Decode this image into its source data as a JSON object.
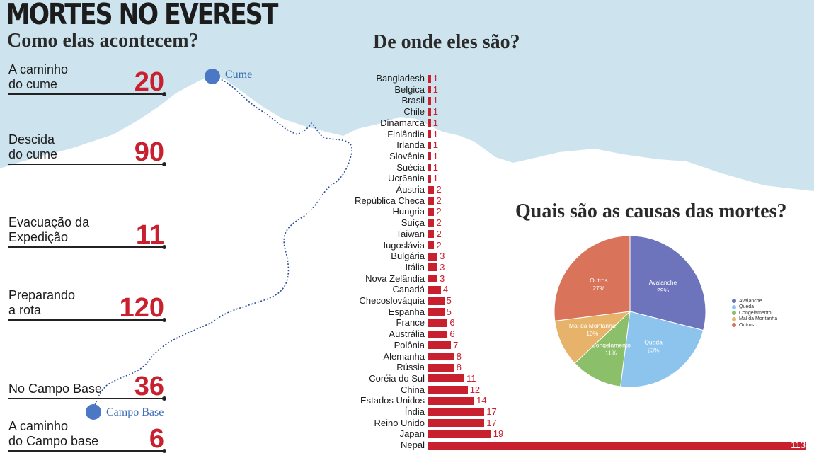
{
  "title": "MORTES NO EVEREST",
  "section_causes": "Como elas acontecem?",
  "section_countries": "De onde eles são?",
  "section_pie": "Quais são as causas das mortes?",
  "map": {
    "summit_label": "Cume",
    "basecamp_label": "Campo Base"
  },
  "causes": [
    {
      "label_line1": "A caminho",
      "label_line2": "do cume",
      "value": "20"
    },
    {
      "label_line1": "Descida",
      "label_line2": "do cume",
      "value": "90"
    },
    {
      "label_line1": "Evacuação da",
      "label_line2": "Expedição",
      "value": "11"
    },
    {
      "label_line1": "Preparando",
      "label_line2": "a rota",
      "value": "120"
    },
    {
      "label_line1": "",
      "label_line2": "No Campo Base",
      "value": "36"
    },
    {
      "label_line1": "A caminho",
      "label_line2": "do Campo base",
      "value": "6"
    }
  ],
  "colors": {
    "sky": "#cde4ee",
    "bar": "#c8202f",
    "route": "#2b4f9a",
    "marker": "#4a78c4",
    "accent_red": "#c8202f"
  },
  "chart_data": [
    {
      "type": "bar",
      "orientation": "horizontal",
      "title": "De onde eles são?",
      "categories": [
        "Bangladesh",
        "Belgica",
        "Brasil",
        "Chile",
        "Dinamarca",
        "Finlândia",
        "Irlanda",
        "Slovênia",
        "Suécia",
        "Ucr6ania",
        "Áustria",
        "República Checa",
        "Hungria",
        "Suíça",
        "Taiwan",
        "Iugoslávia",
        "Bulgária",
        "Itália",
        "Nova Zelândia",
        "Canadá",
        "Checoslováquia",
        "Espanha",
        "France",
        "Austrália",
        "Polônia",
        "Alemanha",
        "Rússia",
        "Coréia do Sul",
        "China",
        "Estados Unidos",
        "Índia",
        "Reino Unido",
        "Japan",
        "Nepal"
      ],
      "values": [
        1,
        1,
        1,
        1,
        1,
        1,
        1,
        1,
        1,
        1,
        2,
        2,
        2,
        2,
        2,
        2,
        3,
        3,
        3,
        4,
        5,
        5,
        6,
        6,
        7,
        8,
        8,
        11,
        12,
        14,
        17,
        17,
        19,
        113
      ],
      "color": "#c8202f"
    },
    {
      "type": "pie",
      "title": "Quais são as causas das mortes?",
      "slices": [
        {
          "name": "Avalanche",
          "value": 29,
          "label": "29%",
          "color": "#6e74bb"
        },
        {
          "name": "Queda",
          "value": 23,
          "label": "23%",
          "color": "#8cc4ee"
        },
        {
          "name": "Congelamento",
          "value": 11,
          "label": "11%",
          "color": "#8cbf6a"
        },
        {
          "name": "Mal da Montanha",
          "value": 10,
          "label": "10%",
          "color": "#e7b36a"
        },
        {
          "name": "Outros",
          "value": 27,
          "label": "27%",
          "color": "#d9745a"
        }
      ],
      "legend": [
        "Avalanche",
        "Queda",
        "Congelamento",
        "Mal da Montanha",
        "Outros"
      ],
      "legend_position": "right"
    }
  ]
}
